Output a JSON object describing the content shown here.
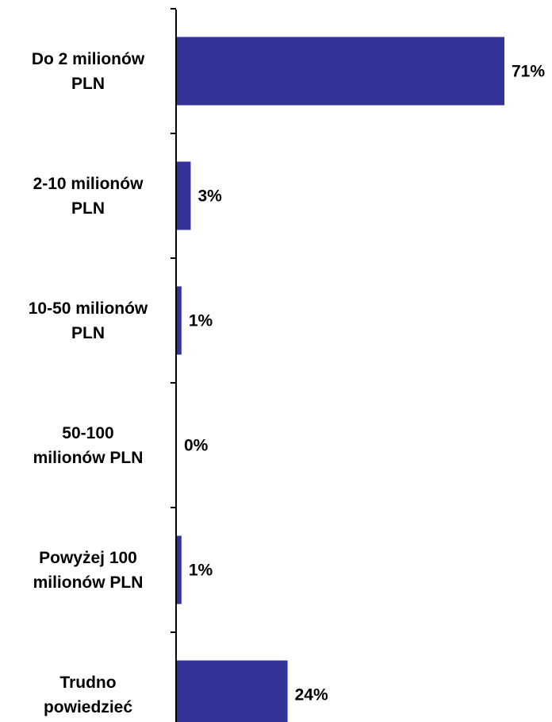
{
  "chart_data": {
    "type": "bar",
    "orientation": "horizontal",
    "categories": [
      [
        "Do 2 milionów",
        "PLN"
      ],
      [
        "2-10 milionów",
        "PLN"
      ],
      [
        "10-50 milionów",
        "PLN"
      ],
      [
        "50-100",
        "milionów PLN"
      ],
      [
        "Powyżej 100",
        "milionów PLN"
      ],
      [
        "Trudno",
        "powiedzieć"
      ]
    ],
    "values": [
      71,
      3,
      1,
      0,
      1,
      24
    ],
    "value_labels": [
      "71%",
      "3%",
      "1%",
      "0%",
      "1%",
      "24%"
    ],
    "unit": "%",
    "xlim": [
      0,
      71
    ],
    "grid": false,
    "legend": "none",
    "title": "",
    "xlabel": "",
    "ylabel": "",
    "colors": {
      "bar": "#333399",
      "axis": "#000000",
      "text": "#000000"
    }
  }
}
